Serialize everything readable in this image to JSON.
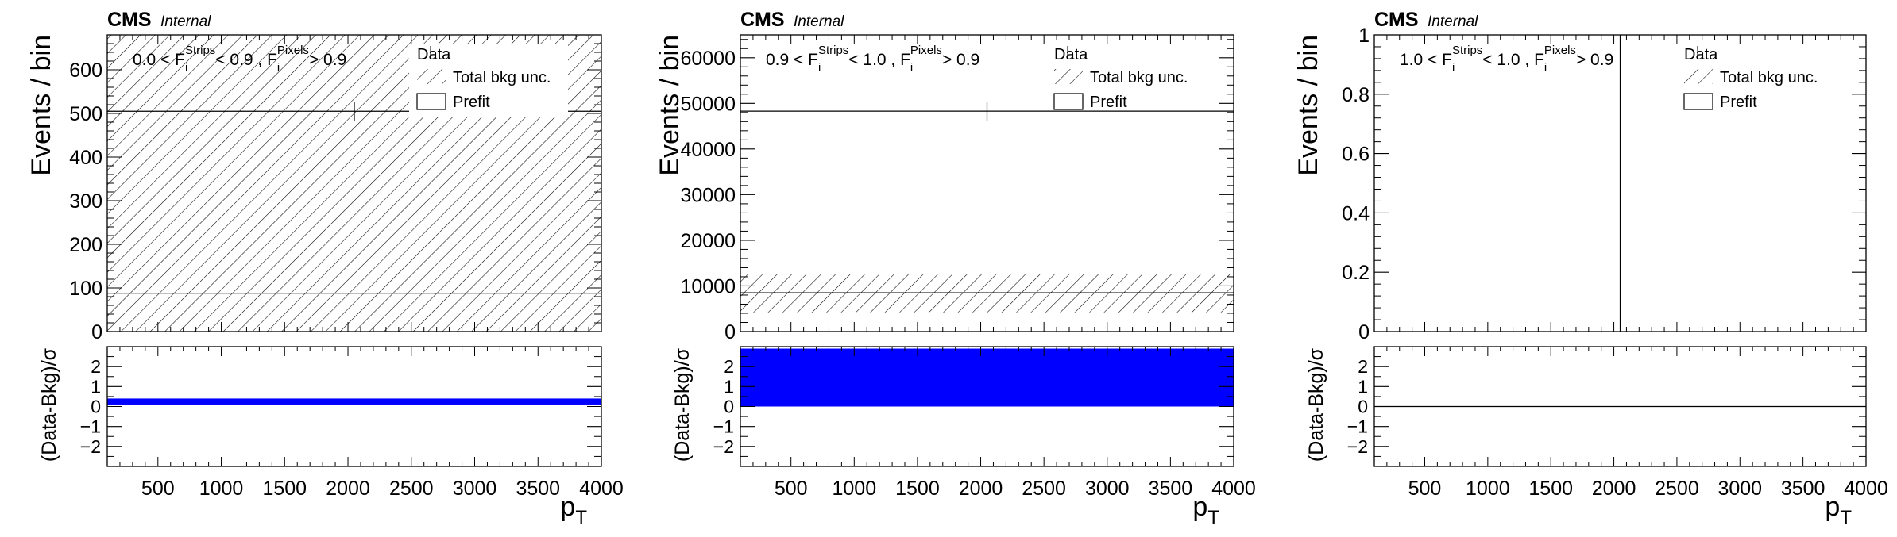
{
  "figure": {
    "cms_label": "CMS",
    "internal_label": "Internal",
    "x_label_main": "p",
    "x_label_sub": "T",
    "y_label_top": "Events / bin",
    "y_label_bottom": "(Data-Bkg)/σ",
    "legend": {
      "data": "Data",
      "unc": "Total bkg unc.",
      "prefit": "Prefit"
    },
    "colors": {
      "pull_fill": "#0000ff",
      "line": "#000000",
      "frame": "#000000"
    }
  },
  "chart_data": [
    {
      "type": "bar",
      "category_prefix": "0.0 < F",
      "category_mid1": " < 0.9 , F",
      "category_suffix": " > 0.9",
      "sup_strips": "Strips",
      "sup_pixels": "Pixels",
      "sub_i": "i",
      "xlim": [
        100,
        4000
      ],
      "ylim": [
        0,
        680
      ],
      "y_ticks": [
        0,
        100,
        200,
        300,
        400,
        500,
        600
      ],
      "y_tick_labels": [
        "0",
        "100",
        "200",
        "300",
        "400",
        "500",
        "600"
      ],
      "prefit_value": 88,
      "data_value": 505,
      "data_point": {
        "x": 2050,
        "y": 505,
        "yerr": 10
      },
      "unc_band": [
        0,
        680
      ],
      "pull": {
        "ylim": [
          -3,
          3
        ],
        "y_ticks": [
          -2,
          -1,
          0,
          1,
          2
        ],
        "y_tick_labels": [
          "−2",
          "−1",
          "0",
          "1",
          "2"
        ],
        "band": [
          0.1,
          0.4
        ]
      },
      "x_ticks": [
        500,
        1000,
        1500,
        2000,
        2500,
        3000,
        3500,
        4000
      ],
      "x_tick_labels": [
        "500",
        "1000",
        "1500",
        "2000",
        "2500",
        "3000",
        "3500",
        "4000"
      ]
    },
    {
      "type": "bar",
      "category_prefix": "0.9 < F",
      "category_mid1": " < 1.0 , F",
      "category_suffix": " > 0.9",
      "sup_strips": "Strips",
      "sup_pixels": "Pixels",
      "sub_i": "i",
      "xlim": [
        100,
        4000
      ],
      "ylim": [
        0,
        65000
      ],
      "y_ticks": [
        0,
        10000,
        20000,
        30000,
        40000,
        50000,
        60000
      ],
      "y_tick_labels": [
        "0",
        "10000",
        "20000",
        "30000",
        "40000",
        "50000",
        "60000"
      ],
      "prefit_value": 8500,
      "data_value": 48300,
      "data_point": {
        "x": 2050,
        "y": 48300,
        "yerr": 220
      },
      "unc_band": [
        4200,
        12500
      ],
      "pull": {
        "ylim": [
          -3,
          3
        ],
        "y_ticks": [
          -2,
          -1,
          0,
          1,
          2
        ],
        "y_tick_labels": [
          "−2",
          "−1",
          "0",
          "1",
          "2"
        ],
        "band": [
          0,
          2.9
        ]
      },
      "x_ticks": [
        500,
        1000,
        1500,
        2000,
        2500,
        3000,
        3500,
        4000
      ],
      "x_tick_labels": [
        "500",
        "1000",
        "1500",
        "2000",
        "2500",
        "3000",
        "3500",
        "4000"
      ]
    },
    {
      "type": "bar",
      "category_prefix": "1.0 < F",
      "category_mid1": " < 1.0 , F",
      "category_suffix": " > 0.9",
      "sup_strips": "Strips",
      "sup_pixels": "Pixels",
      "sub_i": "i",
      "xlim": [
        100,
        4000
      ],
      "ylim": [
        0,
        1
      ],
      "y_ticks": [
        0,
        0.2,
        0.4,
        0.6,
        0.8,
        1
      ],
      "y_tick_labels": [
        "0",
        "0.2",
        "0.4",
        "0.6",
        "0.8",
        "1"
      ],
      "data_vertical_x": 2050,
      "pull": {
        "ylim": [
          -3,
          3
        ],
        "y_ticks": [
          -2,
          -1,
          0,
          1,
          2
        ],
        "y_tick_labels": [
          "−2",
          "−1",
          "0",
          "1",
          "2"
        ],
        "zero_line": 0
      },
      "x_ticks": [
        500,
        1000,
        1500,
        2000,
        2500,
        3000,
        3500,
        4000
      ],
      "x_tick_labels": [
        "500",
        "1000",
        "1500",
        "2000",
        "2500",
        "3000",
        "3500",
        "4000"
      ]
    }
  ]
}
